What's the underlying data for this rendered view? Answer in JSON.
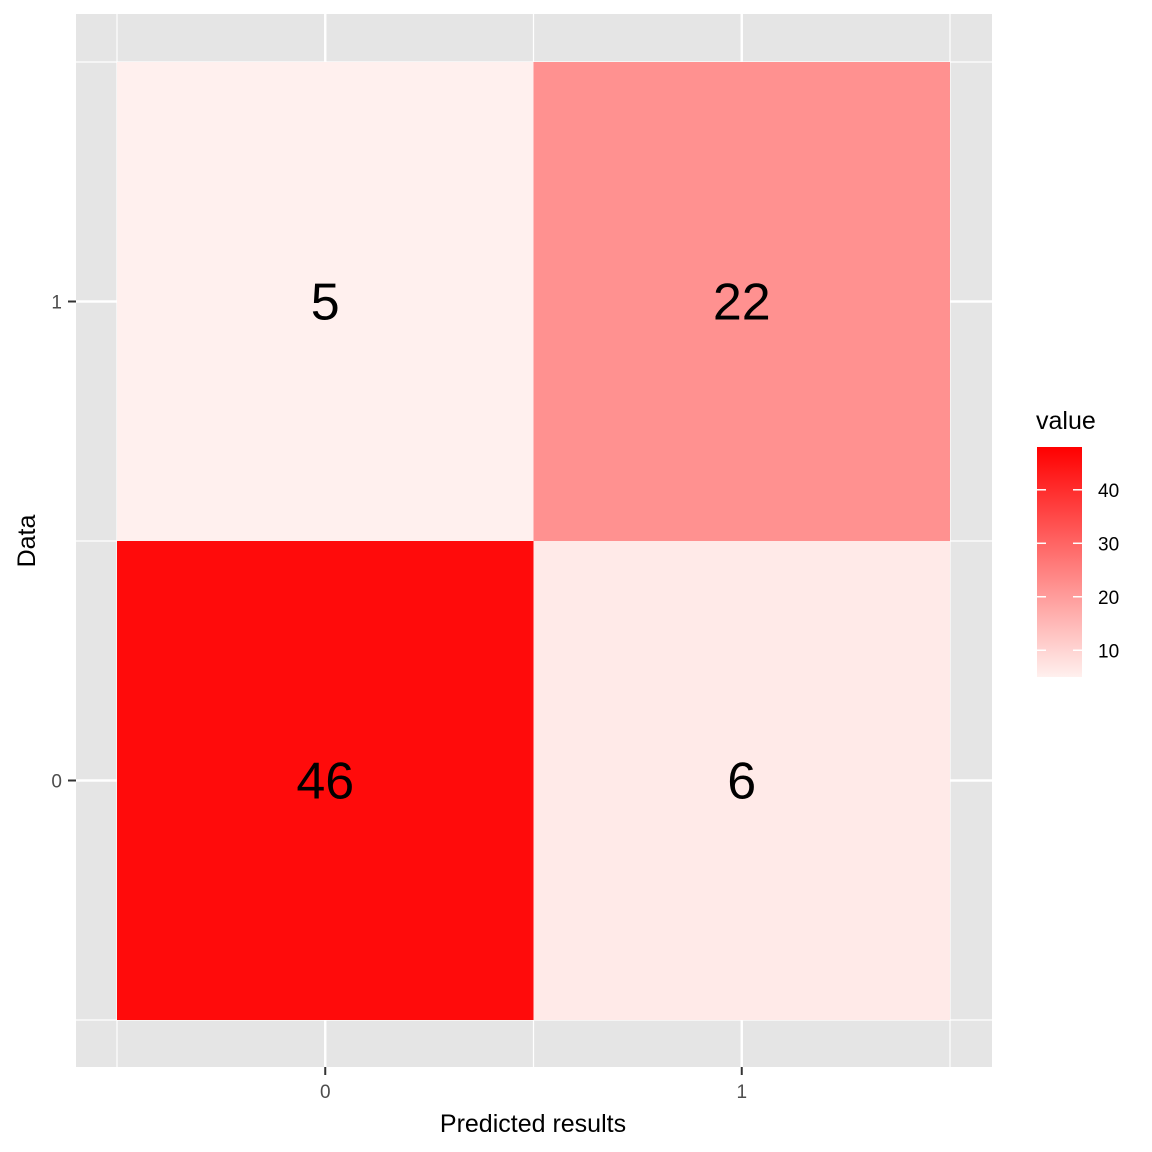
{
  "chart_data": {
    "type": "heatmap",
    "x_categories": [
      "0",
      "1"
    ],
    "y_categories": [
      "0",
      "1"
    ],
    "xlabel": "Predicted results",
    "ylabel": "Data",
    "cells": [
      {
        "x": "0",
        "y": "1",
        "value": 5
      },
      {
        "x": "1",
        "y": "1",
        "value": 22
      },
      {
        "x": "0",
        "y": "0",
        "value": 46
      },
      {
        "x": "1",
        "y": "0",
        "value": 6
      }
    ],
    "legend": {
      "title": "value",
      "ticks": [
        10,
        20,
        30,
        40
      ],
      "range": [
        5,
        48
      ],
      "low_color": "#fff0ee",
      "high_color": "#ff0000",
      "placement": "right"
    },
    "panel_background": "#e5e5e5",
    "grid": true
  }
}
